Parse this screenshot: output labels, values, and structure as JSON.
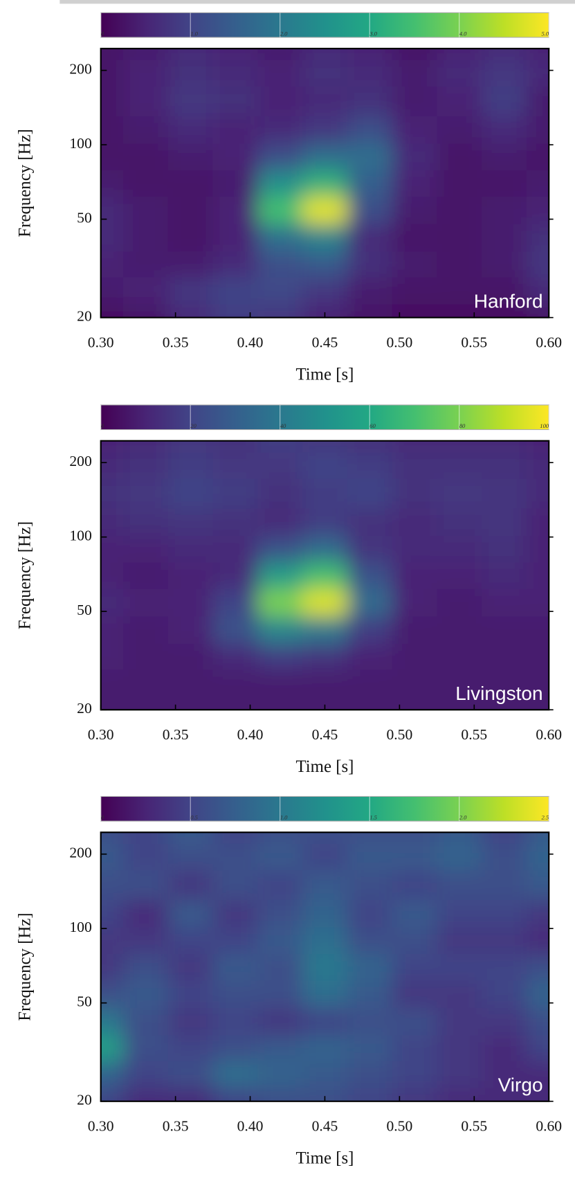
{
  "chart_data": [
    {
      "type": "heatmap",
      "colormap": "viridis",
      "annotation": "Hanford",
      "xlabel": "Time [s]",
      "ylabel": "Frequency [Hz]",
      "xlim": [
        0.3,
        0.6
      ],
      "ylim": [
        20,
        245
      ],
      "ylog": true,
      "xticks": [
        {
          "value": 0.3,
          "label": "0.30"
        },
        0.35,
        {
          "value": 0.4,
          "label": "0.40"
        },
        0.45,
        {
          "value": 0.5,
          "label": "0.50"
        },
        0.55,
        {
          "value": 0.6,
          "label": "0.60"
        }
      ],
      "yticks": [
        20,
        50,
        100,
        200
      ],
      "zlim": [
        0,
        5
      ],
      "cticks": [
        0,
        {
          "value": 1,
          "label": "1.0"
        },
        {
          "value": 2,
          "label": "2.0"
        },
        {
          "value": 3,
          "label": "3.0"
        },
        {
          "value": 4,
          "label": "4.0"
        },
        {
          "value": 5,
          "label": "5.0"
        }
      ],
      "x": [
        0.3,
        0.33,
        0.36,
        0.39,
        0.42,
        0.45,
        0.48,
        0.51,
        0.54,
        0.57,
        0.6
      ],
      "y": [
        20,
        26,
        33,
        42,
        55,
        70,
        90,
        115,
        150,
        200,
        245
      ],
      "values": [
        [
          0.2,
          0.3,
          0.6,
          0.9,
          0.8,
          0.5,
          0.3,
          0.2,
          0.2,
          0.2,
          0.3
        ],
        [
          0.4,
          0.5,
          0.8,
          1.0,
          1.1,
          0.8,
          0.4,
          0.3,
          0.3,
          0.3,
          0.6
        ],
        [
          0.5,
          0.4,
          0.4,
          0.6,
          1.2,
          1.4,
          0.7,
          0.4,
          0.3,
          0.4,
          0.8
        ],
        [
          0.6,
          0.4,
          0.3,
          0.5,
          1.8,
          2.2,
          0.6,
          0.3,
          0.3,
          0.4,
          0.7
        ],
        [
          0.6,
          0.4,
          0.3,
          0.5,
          3.5,
          4.8,
          1.2,
          0.4,
          0.3,
          0.4,
          0.5
        ],
        [
          0.4,
          0.3,
          0.3,
          0.4,
          2.5,
          3.2,
          1.5,
          0.5,
          0.3,
          0.3,
          0.4
        ],
        [
          0.3,
          0.3,
          0.4,
          0.5,
          1.2,
          1.8,
          1.8,
          0.6,
          0.3,
          0.4,
          0.3
        ],
        [
          0.3,
          0.4,
          0.6,
          0.5,
          0.6,
          0.8,
          1.2,
          0.5,
          0.4,
          0.6,
          0.4
        ],
        [
          0.3,
          0.5,
          0.8,
          0.7,
          0.5,
          0.6,
          0.7,
          0.4,
          0.5,
          0.9,
          0.4
        ],
        [
          0.3,
          0.5,
          0.7,
          0.6,
          0.5,
          0.7,
          0.6,
          0.4,
          0.6,
          0.8,
          0.6
        ],
        [
          0.3,
          0.4,
          0.6,
          0.5,
          0.4,
          0.6,
          0.5,
          0.3,
          0.5,
          0.6,
          0.5
        ]
      ]
    },
    {
      "type": "heatmap",
      "colormap": "viridis",
      "annotation": "Livingston",
      "xlabel": "Time [s]",
      "ylabel": "Frequency [Hz]",
      "xlim": [
        0.3,
        0.6
      ],
      "ylim": [
        20,
        245
      ],
      "ylog": true,
      "xticks": [
        {
          "value": 0.3,
          "label": "0.30"
        },
        0.35,
        {
          "value": 0.4,
          "label": "0.40"
        },
        0.45,
        {
          "value": 0.5,
          "label": "0.50"
        },
        0.55,
        {
          "value": 0.6,
          "label": "0.60"
        }
      ],
      "yticks": [
        20,
        50,
        100,
        200
      ],
      "zlim": [
        0,
        100
      ],
      "cticks": [
        0,
        20,
        40,
        60,
        80,
        100
      ],
      "x": [
        0.3,
        0.33,
        0.36,
        0.39,
        0.42,
        0.45,
        0.48,
        0.51,
        0.54,
        0.57,
        0.6
      ],
      "y": [
        20,
        26,
        33,
        42,
        55,
        70,
        90,
        115,
        150,
        200,
        245
      ],
      "values": [
        [
          8,
          8,
          8,
          8,
          8,
          8,
          8,
          8,
          8,
          8,
          8
        ],
        [
          8,
          8,
          8,
          8,
          8,
          8,
          8,
          8,
          8,
          8,
          8
        ],
        [
          10,
          8,
          8,
          12,
          18,
          15,
          10,
          8,
          8,
          8,
          8
        ],
        [
          10,
          8,
          10,
          25,
          45,
          40,
          18,
          8,
          8,
          8,
          8
        ],
        [
          12,
          10,
          10,
          20,
          80,
          95,
          35,
          10,
          8,
          10,
          10
        ],
        [
          10,
          8,
          10,
          12,
          55,
          70,
          25,
          10,
          10,
          12,
          10
        ],
        [
          10,
          10,
          12,
          12,
          25,
          35,
          15,
          12,
          12,
          14,
          10
        ],
        [
          12,
          14,
          15,
          14,
          12,
          18,
          14,
          12,
          14,
          15,
          10
        ],
        [
          14,
          16,
          20,
          18,
          14,
          18,
          20,
          14,
          16,
          15,
          12
        ],
        [
          12,
          14,
          18,
          16,
          16,
          20,
          18,
          14,
          14,
          14,
          12
        ],
        [
          10,
          12,
          16,
          14,
          18,
          16,
          14,
          12,
          12,
          12,
          10
        ]
      ]
    },
    {
      "type": "heatmap",
      "colormap": "viridis",
      "annotation": "Virgo",
      "xlabel": "Time [s]",
      "ylabel": "Frequency [Hz]",
      "xlim": [
        0.3,
        0.6
      ],
      "ylim": [
        20,
        245
      ],
      "ylog": true,
      "xticks": [
        {
          "value": 0.3,
          "label": "0.30"
        },
        0.35,
        {
          "value": 0.4,
          "label": "0.40"
        },
        0.45,
        {
          "value": 0.5,
          "label": "0.50"
        },
        0.55,
        {
          "value": 0.6,
          "label": "0.60"
        }
      ],
      "yticks": [
        20,
        50,
        100,
        200
      ],
      "zlim": [
        0,
        2.5
      ],
      "cticks": [
        0,
        0.5,
        {
          "value": 1,
          "label": "1.0"
        },
        1.5,
        {
          "value": 2,
          "label": "2.0"
        },
        2.5
      ],
      "x": [
        0.3,
        0.33,
        0.36,
        0.39,
        0.42,
        0.45,
        0.48,
        0.51,
        0.54,
        0.57,
        0.6
      ],
      "y": [
        20,
        26,
        33,
        42,
        55,
        70,
        90,
        115,
        150,
        200,
        245
      ],
      "values": [
        [
          0.5,
          0.3,
          0.3,
          0.5,
          0.6,
          0.6,
          0.5,
          0.4,
          0.3,
          0.3,
          0.3
        ],
        [
          0.8,
          0.5,
          0.6,
          0.9,
          0.8,
          0.7,
          0.6,
          0.5,
          0.4,
          0.3,
          0.3
        ],
        [
          1.4,
          0.6,
          0.5,
          0.6,
          0.7,
          0.8,
          0.7,
          0.5,
          0.4,
          0.3,
          0.5
        ],
        [
          1.0,
          0.6,
          0.4,
          0.5,
          0.4,
          0.5,
          0.6,
          0.6,
          0.4,
          0.4,
          0.6
        ],
        [
          0.6,
          0.7,
          0.5,
          0.6,
          0.6,
          0.9,
          0.7,
          0.4,
          0.4,
          0.5,
          0.8
        ],
        [
          0.4,
          0.6,
          0.4,
          0.7,
          0.6,
          1.0,
          0.8,
          0.5,
          0.5,
          0.5,
          0.6
        ],
        [
          0.4,
          0.4,
          0.5,
          0.5,
          0.7,
          0.9,
          0.6,
          0.6,
          0.4,
          0.4,
          0.3
        ],
        [
          0.5,
          0.3,
          0.7,
          0.4,
          0.6,
          0.8,
          0.5,
          0.7,
          0.5,
          0.5,
          0.4
        ],
        [
          0.6,
          0.6,
          0.4,
          0.6,
          0.5,
          0.7,
          0.6,
          0.5,
          0.6,
          0.6,
          0.7
        ],
        [
          0.7,
          0.5,
          0.6,
          0.6,
          0.7,
          0.5,
          0.7,
          0.7,
          0.8,
          0.6,
          0.8
        ],
        [
          0.6,
          0.5,
          0.7,
          0.5,
          0.6,
          0.6,
          0.6,
          0.6,
          0.7,
          0.5,
          0.7
        ]
      ]
    }
  ]
}
